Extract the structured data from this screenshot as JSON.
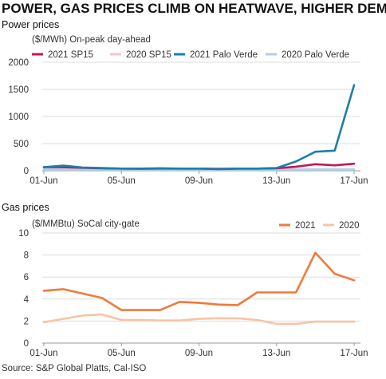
{
  "title": "POWER, GAS PRICES CLIMB ON HEATWAVE, HIGHER DEMAND",
  "source": "Source: S&P Global Platts, Cal-ISO",
  "chart_data": [
    {
      "type": "line",
      "panel_title": "Power prices",
      "ylabel": "($/MWh) On-peak day-ahead",
      "x": [
        "01-Jun",
        "02-Jun",
        "03-Jun",
        "04-Jun",
        "05-Jun",
        "06-Jun",
        "07-Jun",
        "08-Jun",
        "09-Jun",
        "10-Jun",
        "11-Jun",
        "12-Jun",
        "13-Jun",
        "14-Jun",
        "15-Jun",
        "16-Jun",
        "17-Jun"
      ],
      "xtick_labels": [
        "01-Jun",
        "05-Jun",
        "09-Jun",
        "13-Jun",
        "17-Jun"
      ],
      "yticks": [
        "0",
        "500",
        "1000",
        "1500",
        "2000"
      ],
      "ylim": [
        0,
        2000
      ],
      "grid": true,
      "legend": "top",
      "series": [
        {
          "name": "2021 SP15",
          "color": "#c2185b",
          "values": [
            65,
            65,
            55,
            45,
            40,
            40,
            45,
            40,
            40,
            35,
            40,
            40,
            45,
            75,
            120,
            100,
            130
          ]
        },
        {
          "name": "2020 SP15",
          "color": "#f4c2d3",
          "values": [
            25,
            25,
            25,
            25,
            25,
            25,
            25,
            25,
            25,
            25,
            25,
            25,
            25,
            30,
            30,
            30,
            30
          ]
        },
        {
          "name": "2021 Palo Verde",
          "color": "#1c7fa8",
          "values": [
            65,
            95,
            60,
            50,
            40,
            35,
            40,
            40,
            40,
            30,
            40,
            40,
            50,
            170,
            350,
            370,
            1580
          ]
        },
        {
          "name": "2020 Palo Verde",
          "color": "#a9d3e8",
          "values": [
            20,
            20,
            20,
            20,
            20,
            20,
            20,
            20,
            20,
            20,
            20,
            20,
            20,
            20,
            20,
            20,
            20
          ]
        }
      ]
    },
    {
      "type": "line",
      "panel_title": "Gas prices",
      "ylabel": "($/MMBtu) SoCal city-gate",
      "x": [
        "01-Jun",
        "02-Jun",
        "03-Jun",
        "04-Jun",
        "05-Jun",
        "06-Jun",
        "07-Jun",
        "08-Jun",
        "09-Jun",
        "10-Jun",
        "11-Jun",
        "12-Jun",
        "13-Jun",
        "14-Jun",
        "15-Jun",
        "16-Jun",
        "17-Jun"
      ],
      "xtick_labels": [
        "01-Jun",
        "05-Jun",
        "09-Jun",
        "13-Jun",
        "17-Jun"
      ],
      "yticks": [
        "0",
        "2",
        "4",
        "6",
        "8",
        "10"
      ],
      "ylim": [
        0,
        10
      ],
      "grid": true,
      "legend": "top-right",
      "series": [
        {
          "name": "2021",
          "color": "#f07a3a",
          "values": [
            4.75,
            4.9,
            4.5,
            4.1,
            3.0,
            3.0,
            3.0,
            3.75,
            3.65,
            3.5,
            3.45,
            4.6,
            4.6,
            4.6,
            8.2,
            6.3,
            5.7
          ]
        },
        {
          "name": "2020",
          "color": "#f8c4a4",
          "values": [
            1.9,
            2.2,
            2.5,
            2.6,
            2.1,
            2.1,
            2.05,
            2.05,
            2.2,
            2.25,
            2.25,
            2.1,
            1.75,
            1.75,
            1.95,
            1.95,
            1.95
          ]
        }
      ]
    }
  ]
}
